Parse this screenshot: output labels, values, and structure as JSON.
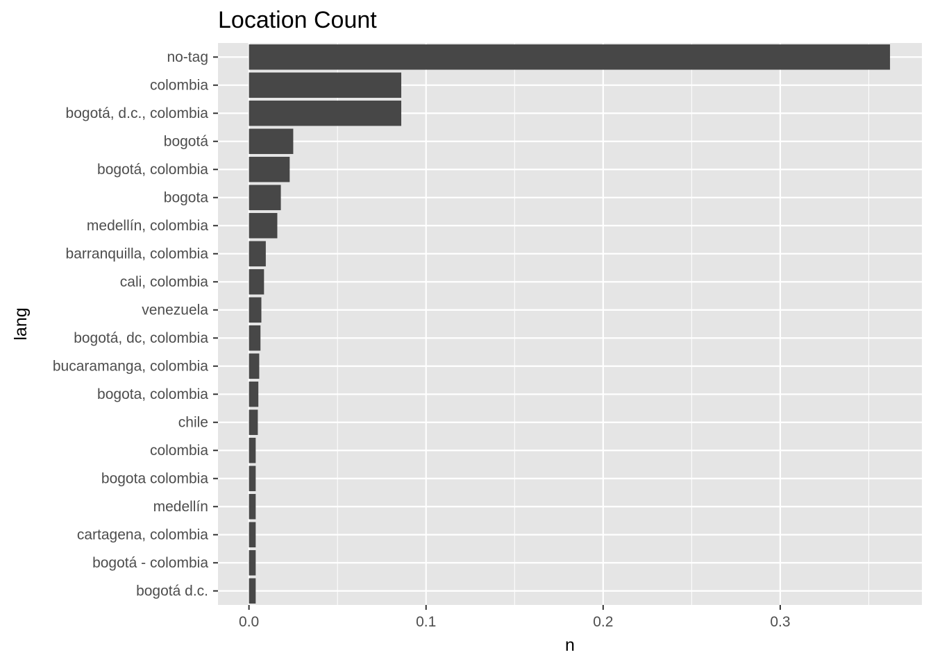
{
  "chart_data": {
    "type": "bar",
    "orientation": "horizontal",
    "title": "Location Count",
    "xlabel": "n",
    "ylabel": "lang",
    "categories": [
      "no-tag",
      "colombia",
      "bogotá, d.c., colombia",
      "bogotá",
      "bogotá, colombia",
      "bogota",
      "medellín, colombia",
      "barranquilla, colombia",
      "cali, colombia",
      "venezuela",
      "bogotá, dc, colombia",
      "bucaramanga, colombia",
      "bogota, colombia",
      "chile",
      "colombia ",
      "bogota colombia",
      "medellín",
      "cartagena, colombia",
      "bogotá - colombia",
      "bogotá d.c."
    ],
    "values": [
      0.362,
      0.086,
      0.086,
      0.025,
      0.023,
      0.018,
      0.016,
      0.0095,
      0.0085,
      0.007,
      0.0065,
      0.0058,
      0.0053,
      0.005,
      0.0038,
      0.0038,
      0.0038,
      0.0038,
      0.0038,
      0.0038
    ],
    "xlim": [
      -0.0175,
      0.38
    ],
    "xticks": [
      0.0,
      0.1,
      0.2,
      0.3
    ],
    "xtick_labels": [
      "0.0",
      "0.1",
      "0.2",
      "0.3"
    ],
    "grid": true,
    "legend": "none",
    "colors": {
      "bar": "#474747",
      "panel": "#e5e5e5",
      "grid": "#ffffff",
      "text": "#4d4d4d"
    }
  }
}
